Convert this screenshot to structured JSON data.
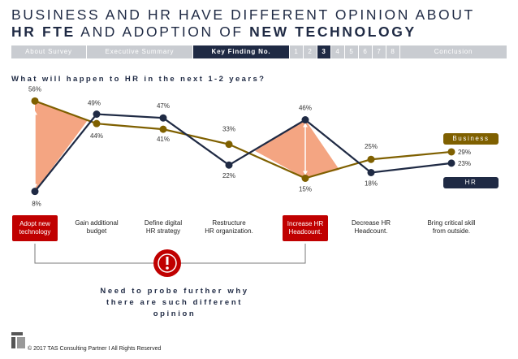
{
  "title": {
    "line1": "BUSINESS AND HR HAVE DIFFERENT OPINION ABOUT",
    "line2_a": "HR FTE",
    "line2_b": " AND ADOPTION OF ",
    "line2_c": "NEW TECHNOLOGY"
  },
  "nav": {
    "tabs": [
      "About Survey",
      "Executive Summary",
      "Key Finding No.",
      "1",
      "2",
      "3",
      "4",
      "5",
      "6",
      "7",
      "8",
      "Conclusion"
    ],
    "active": [
      "Key Finding No.",
      "3"
    ]
  },
  "subtitle": "What will happen to HR in the next 1-2 years?",
  "chart_data": {
    "type": "line",
    "title": "What will happen to HR in the next 1-2 years?",
    "categories": [
      "Adopt new technology",
      "Gain additional budget",
      "Define digital HR strategy",
      "Restructure HR organization.",
      "Increase HR Headcount.",
      "Decrease HR Headcount.",
      "Bring critical skill from outside."
    ],
    "series": [
      {
        "name": "Business",
        "values": [
          56,
          44,
          41,
          33,
          15,
          25,
          29
        ],
        "color": "#7f6000"
      },
      {
        "name": "HR",
        "values": [
          8,
          49,
          47,
          22,
          46,
          18,
          23
        ],
        "color": "#1f2a44"
      }
    ],
    "highlighted_gaps": [
      "Adopt new technology",
      "Increase HR Headcount."
    ],
    "ylim": [
      0,
      60
    ]
  },
  "categories_display": [
    {
      "label": "Adopt new\ntechnology",
      "highlight": true
    },
    {
      "label": "Gain additional\nbudget",
      "highlight": false
    },
    {
      "label": "Define digital\nHR strategy",
      "highlight": false
    },
    {
      "label": "Restructure\nHR organization.",
      "highlight": false
    },
    {
      "label": "Increase HR\nHeadcount.",
      "highlight": true
    },
    {
      "label": "Decrease HR\nHeadcount.",
      "highlight": false
    },
    {
      "label": "Bring critical skill\nfrom outside.",
      "highlight": false
    }
  ],
  "legend": {
    "business": "Business",
    "hr": "HR"
  },
  "probe": {
    "line1": "Need to probe further why",
    "line2": "there are such different opinion"
  },
  "footer": "© 2017 TAS Consulting Partner  I  All Rights Reserved",
  "colors": {
    "navy": "#1f2a44",
    "gold": "#7f6000",
    "gap_fill": "#f4a582",
    "red": "#c00000",
    "grey": "#c9ccd1"
  }
}
